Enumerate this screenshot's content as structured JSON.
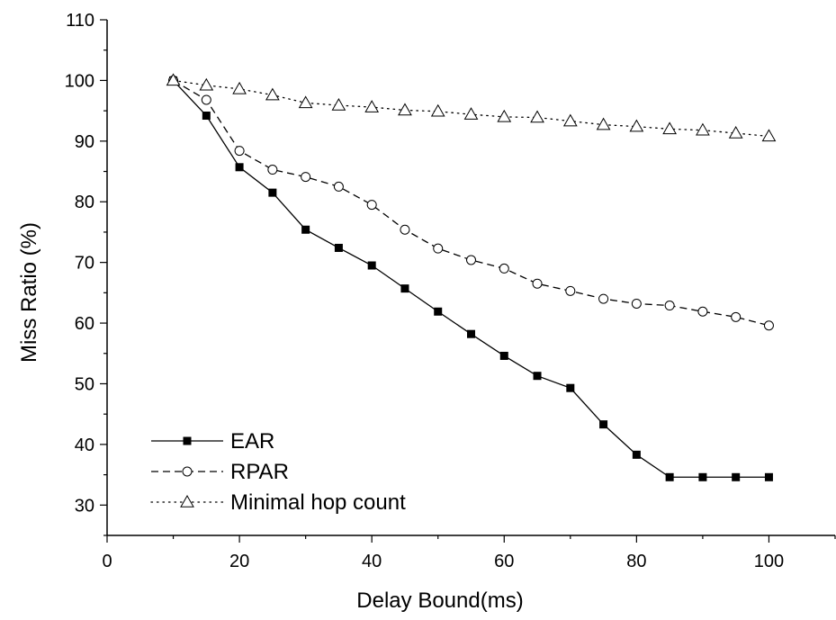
{
  "chart_data": {
    "type": "line",
    "title": "",
    "xlabel": "Delay Bound(ms)",
    "ylabel": "Miss Ratio (%)",
    "xlim": [
      0,
      110
    ],
    "ylim": [
      25,
      110
    ],
    "x_ticks": [
      0,
      20,
      40,
      60,
      80,
      100
    ],
    "y_ticks": [
      30,
      40,
      50,
      60,
      70,
      80,
      90,
      100,
      110
    ],
    "grid": false,
    "legend_position": "bottom-left",
    "x": [
      10,
      15,
      20,
      25,
      30,
      35,
      40,
      45,
      50,
      55,
      60,
      65,
      70,
      75,
      80,
      85,
      90,
      95,
      100
    ],
    "series": [
      {
        "name": "EAR",
        "line_style": "solid",
        "marker": "filled-square",
        "values": [
          100,
          94.2,
          85.7,
          81.5,
          75.4,
          72.4,
          69.5,
          65.7,
          61.9,
          58.2,
          54.6,
          51.3,
          49.3,
          43.3,
          38.3,
          34.6,
          34.6,
          34.6,
          34.6
        ]
      },
      {
        "name": "RPAR",
        "line_style": "dashed",
        "marker": "open-circle",
        "values": [
          100,
          96.8,
          88.4,
          85.3,
          84.1,
          82.5,
          79.5,
          75.4,
          72.3,
          70.4,
          69.0,
          66.5,
          65.3,
          64.0,
          63.2,
          62.9,
          61.9,
          61.0,
          59.6
        ]
      },
      {
        "name": "Minimal hop count",
        "line_style": "dotted",
        "marker": "open-triangle",
        "values": [
          100,
          99.2,
          98.6,
          97.6,
          96.3,
          95.9,
          95.6,
          95.1,
          94.9,
          94.4,
          94.0,
          93.9,
          93.3,
          92.7,
          92.4,
          92.0,
          91.8,
          91.3,
          90.8
        ]
      }
    ]
  }
}
